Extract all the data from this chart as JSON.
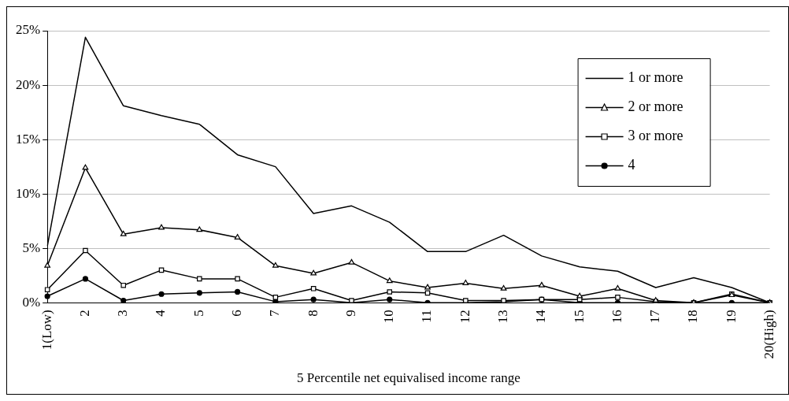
{
  "chart_data": {
    "type": "line",
    "xlabel": "5 Percentile net equivalised income range",
    "categories": [
      "1(Low)",
      "2",
      "3",
      "4",
      "5",
      "6",
      "7",
      "8",
      "9",
      "10",
      "11",
      "12",
      "13",
      "14",
      "15",
      "16",
      "17",
      "18",
      "19",
      "20(High)"
    ],
    "ylim": [
      0,
      25
    ],
    "yticks": [
      {
        "value": 0,
        "label": "0%"
      },
      {
        "value": 5,
        "label": "5%"
      },
      {
        "value": 10,
        "label": "10%"
      },
      {
        "value": 15,
        "label": "15%"
      },
      {
        "value": 20,
        "label": "20%"
      },
      {
        "value": 25,
        "label": "25%"
      }
    ],
    "grid": "y",
    "legend": "top right",
    "line_style": "solid",
    "series": [
      {
        "name": "1 or more",
        "color": "#000000",
        "marker": "none",
        "values": [
          5.2,
          24.4,
          18.1,
          17.2,
          16.4,
          13.6,
          12.5,
          8.2,
          8.9,
          7.4,
          4.7,
          4.7,
          6.2,
          4.3,
          3.3,
          2.9,
          1.4,
          2.3,
          1.4,
          0
        ]
      },
      {
        "name": "2 or more",
        "color": "#000000",
        "marker": "triangle",
        "values": [
          3.4,
          12.4,
          6.3,
          6.9,
          6.7,
          6.0,
          3.4,
          2.7,
          3.7,
          2.0,
          1.4,
          1.8,
          1.3,
          1.6,
          0.6,
          1.3,
          0.2,
          0.0,
          0.7,
          0
        ]
      },
      {
        "name": "3 or more",
        "color": "#000000",
        "marker": "square",
        "values": [
          1.2,
          4.8,
          1.6,
          3.0,
          2.2,
          2.2,
          0.5,
          1.3,
          0.2,
          1.0,
          0.9,
          0.2,
          0.2,
          0.3,
          0.3,
          0.5,
          0.1,
          0.0,
          0.8,
          0
        ]
      },
      {
        "name": "4",
        "color": "#000000",
        "marker": "circle",
        "values": [
          0.6,
          2.2,
          0.2,
          0.8,
          0.9,
          1.0,
          0.1,
          0.3,
          0.0,
          0.3,
          0.0,
          0.0,
          0.1,
          0.3,
          0.0,
          0.0,
          0.0,
          0.0,
          0.0,
          0
        ]
      }
    ]
  }
}
